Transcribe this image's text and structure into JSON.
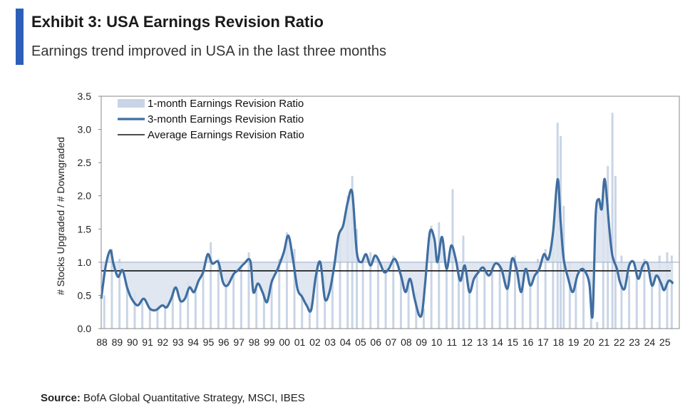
{
  "header": {
    "title": "Exhibit 3: USA Earnings Revision Ratio",
    "subtitle": "Earnings trend improved in USA in the last three months"
  },
  "footer": {
    "source_label": "Source:",
    "source_text": "BofA Global Quantitative Strategy, MSCI, IBES"
  },
  "colors": {
    "accent": "#2d5fb8",
    "one_month": "#c9d5e6",
    "three_month": "#3f6ea1",
    "average": "#111111",
    "area_fill": "#dbe3ee"
  },
  "chart_data": {
    "type": "line",
    "title": "",
    "ylabel": "# Stocks Upgraded / # Downgraded",
    "xlabel": "",
    "ylim": [
      0,
      3.5
    ],
    "y_ticks": [
      "0.0",
      "0.5",
      "1.0",
      "1.5",
      "2.0",
      "2.5",
      "3.0",
      "3.5"
    ],
    "x_range": [
      1988,
      2026.0
    ],
    "x_tick_labels": [
      "88",
      "89",
      "90",
      "91",
      "92",
      "93",
      "94",
      "95",
      "96",
      "97",
      "98",
      "99",
      "00",
      "01",
      "02",
      "03",
      "04",
      "05",
      "06",
      "07",
      "08",
      "09",
      "10",
      "11",
      "12",
      "13",
      "14",
      "15",
      "16",
      "17",
      "18",
      "19",
      "20",
      "21",
      "22",
      "23",
      "24",
      "25"
    ],
    "grid": false,
    "reference_line": 1.0,
    "legend_position": "top-left",
    "legend": [
      {
        "name": "1-month Earnings Revision Ratio",
        "kind": "bar"
      },
      {
        "name": "3-month Earnings Revision Ratio",
        "kind": "line"
      },
      {
        "name": "Average Earnings Revision Ratio",
        "kind": "line"
      }
    ],
    "average_value": 0.87,
    "series": [
      {
        "name": "3-month Earnings Revision Ratio",
        "x": [
          1988.0,
          1988.3,
          1988.6,
          1988.8,
          1989.1,
          1989.4,
          1989.7,
          1990.0,
          1990.4,
          1990.8,
          1991.2,
          1991.6,
          1992.0,
          1992.3,
          1992.6,
          1992.9,
          1993.2,
          1993.5,
          1993.8,
          1994.1,
          1994.4,
          1994.7,
          1995.0,
          1995.3,
          1995.7,
          1996.0,
          1996.3,
          1996.7,
          1997.0,
          1997.4,
          1997.8,
          1998.0,
          1998.3,
          1998.6,
          1998.9,
          1999.2,
          1999.6,
          2000.0,
          2000.3,
          2000.6,
          2000.9,
          2001.2,
          2001.5,
          2001.8,
          2002.1,
          2002.4,
          2002.7,
          2003.0,
          2003.3,
          2003.6,
          2003.9,
          2004.2,
          2004.5,
          2004.8,
          2005.1,
          2005.4,
          2005.7,
          2006.0,
          2006.3,
          2006.6,
          2006.9,
          2007.3,
          2007.7,
          2008.0,
          2008.3,
          2008.6,
          2008.9,
          2009.1,
          2009.3,
          2009.6,
          2009.9,
          2010.1,
          2010.4,
          2010.7,
          2011.0,
          2011.3,
          2011.6,
          2011.9,
          2012.2,
          2012.5,
          2012.8,
          2013.1,
          2013.5,
          2013.9,
          2014.3,
          2014.7,
          2015.0,
          2015.3,
          2015.6,
          2015.9,
          2016.2,
          2016.5,
          2016.8,
          2017.1,
          2017.4,
          2017.7,
          2018.0,
          2018.2,
          2018.4,
          2018.7,
          2019.0,
          2019.3,
          2019.6,
          2019.9,
          2020.1,
          2020.3,
          2020.5,
          2020.7,
          2020.9,
          2021.1,
          2021.4,
          2021.6,
          2021.9,
          2022.1,
          2022.4,
          2022.7,
          2023.0,
          2023.3,
          2023.6,
          2023.9,
          2024.2,
          2024.5,
          2024.8,
          2025.0,
          2025.3,
          2025.6
        ],
        "values": [
          0.45,
          0.95,
          1.18,
          0.98,
          0.78,
          0.88,
          0.62,
          0.45,
          0.35,
          0.45,
          0.3,
          0.28,
          0.35,
          0.32,
          0.45,
          0.62,
          0.42,
          0.45,
          0.62,
          0.55,
          0.72,
          0.85,
          1.12,
          0.98,
          1.0,
          0.7,
          0.65,
          0.82,
          0.88,
          0.98,
          1.02,
          0.55,
          0.68,
          0.55,
          0.4,
          0.7,
          0.9,
          1.15,
          1.4,
          1.05,
          0.6,
          0.48,
          0.35,
          0.28,
          0.78,
          1.0,
          0.45,
          0.55,
          0.92,
          1.4,
          1.55,
          1.9,
          2.05,
          1.15,
          1.0,
          1.12,
          0.95,
          1.1,
          1.0,
          0.85,
          0.9,
          1.05,
          0.8,
          0.55,
          0.75,
          0.45,
          0.2,
          0.25,
          0.7,
          1.45,
          1.35,
          1.0,
          1.38,
          0.9,
          1.25,
          1.05,
          0.72,
          0.95,
          0.55,
          0.75,
          0.85,
          0.92,
          0.8,
          0.98,
          0.9,
          0.6,
          1.05,
          0.9,
          0.55,
          0.9,
          0.65,
          0.8,
          0.9,
          1.12,
          1.05,
          1.45,
          2.25,
          1.6,
          1.05,
          0.75,
          0.55,
          0.8,
          0.9,
          0.82,
          0.65,
          0.2,
          1.7,
          1.95,
          1.8,
          2.25,
          1.5,
          1.1,
          0.9,
          0.7,
          0.6,
          0.95,
          1.0,
          0.75,
          0.95,
          0.98,
          0.65,
          0.8,
          0.68,
          0.58,
          0.72,
          0.68
        ]
      },
      {
        "name": "1-month Earnings Revision Ratio",
        "x": [
          1988.2,
          1988.7,
          1989.2,
          1989.7,
          1990.2,
          1990.7,
          1991.2,
          1991.7,
          1992.2,
          1992.7,
          1993.2,
          1993.7,
          1994.2,
          1994.7,
          1995.2,
          1995.7,
          1996.2,
          1996.7,
          1997.2,
          1997.7,
          1998.2,
          1998.7,
          1999.2,
          1999.7,
          2000.2,
          2000.7,
          2001.2,
          2001.7,
          2002.2,
          2002.7,
          2003.2,
          2003.7,
          2004.2,
          2004.5,
          2004.8,
          2005.2,
          2005.7,
          2006.2,
          2006.7,
          2007.2,
          2007.7,
          2008.2,
          2008.7,
          2009.2,
          2009.7,
          2010.2,
          2010.7,
          2011.1,
          2011.5,
          2011.8,
          2012.2,
          2012.7,
          2013.2,
          2013.7,
          2014.2,
          2014.7,
          2015.2,
          2015.7,
          2016.2,
          2016.7,
          2017.2,
          2017.7,
          2018.0,
          2018.2,
          2018.4,
          2018.8,
          2019.2,
          2019.7,
          2020.2,
          2020.6,
          2021.0,
          2021.3,
          2021.6,
          2021.8,
          2022.2,
          2022.7,
          2023.2,
          2023.7,
          2024.2,
          2024.7,
          2025.2,
          2025.5
        ],
        "values": [
          0.5,
          1.2,
          1.05,
          0.7,
          0.55,
          0.42,
          0.3,
          0.35,
          0.4,
          0.65,
          0.48,
          0.7,
          0.65,
          0.95,
          1.3,
          1.05,
          0.75,
          0.88,
          0.95,
          1.15,
          0.6,
          0.55,
          0.75,
          1.05,
          1.45,
          1.2,
          0.55,
          0.4,
          0.85,
          0.8,
          0.75,
          1.45,
          2.0,
          2.3,
          1.5,
          1.05,
          1.15,
          1.05,
          0.95,
          1.1,
          0.8,
          0.7,
          0.55,
          0.3,
          1.55,
          1.6,
          1.0,
          2.1,
          0.9,
          1.4,
          0.7,
          0.85,
          0.95,
          1.0,
          0.95,
          0.8,
          1.1,
          1.0,
          0.8,
          1.05,
          1.2,
          1.45,
          3.1,
          2.9,
          1.85,
          1.0,
          0.7,
          1.0,
          0.75,
          0.1,
          1.9,
          2.45,
          3.25,
          2.3,
          1.1,
          0.8,
          0.9,
          1.05,
          0.85,
          1.1,
          1.15,
          1.1
        ]
      }
    ]
  }
}
